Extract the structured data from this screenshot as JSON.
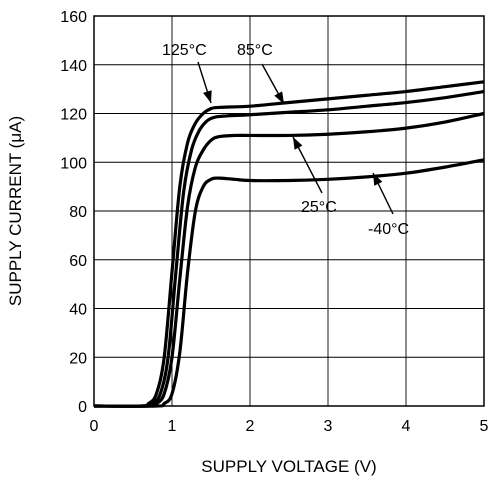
{
  "chart_data": {
    "type": "line",
    "title": "",
    "xlabel": "SUPPLY VOLTAGE (V)",
    "ylabel": "SUPPLY CURRENT (μA)",
    "xlim": [
      0,
      5
    ],
    "ylim": [
      0,
      160
    ],
    "xticks": [
      0,
      1,
      2,
      3,
      4,
      5
    ],
    "yticks": [
      0,
      20,
      40,
      60,
      80,
      100,
      120,
      140,
      160
    ],
    "grid": true,
    "legend": "none",
    "line_color": "#000000",
    "series": [
      {
        "name": "125°C",
        "x": [
          0,
          0.6,
          0.7,
          0.8,
          0.9,
          1.0,
          1.1,
          1.2,
          1.3,
          1.4,
          1.5,
          1.6,
          2,
          2.5,
          3,
          3.5,
          4,
          4.5,
          5
        ],
        "y": [
          0,
          0,
          1,
          5,
          20,
          55,
          90,
          108,
          116,
          120,
          122,
          122.5,
          123,
          124.5,
          126,
          127.5,
          129,
          131,
          133
        ]
      },
      {
        "name": "85°C",
        "x": [
          0,
          0.65,
          0.75,
          0.85,
          0.95,
          1.05,
          1.15,
          1.25,
          1.35,
          1.45,
          1.55,
          1.7,
          2,
          2.5,
          3,
          3.5,
          4,
          4.5,
          5
        ],
        "y": [
          0,
          0,
          1,
          5,
          20,
          55,
          88,
          105,
          113,
          117,
          118.5,
          119,
          119.5,
          120.5,
          121.5,
          123,
          124.5,
          126.5,
          129
        ]
      },
      {
        "name": "25°C",
        "x": [
          0,
          0.7,
          0.8,
          0.9,
          1.0,
          1.1,
          1.2,
          1.3,
          1.4,
          1.5,
          1.6,
          1.8,
          2,
          2.5,
          3,
          3.5,
          4,
          4.5,
          5
        ],
        "y": [
          0,
          0,
          1,
          5,
          20,
          52,
          82,
          98,
          105,
          109,
          110.5,
          111,
          111,
          111,
          111.5,
          112.5,
          114,
          116.5,
          120
        ]
      },
      {
        "name": "-40°C",
        "x": [
          0,
          0.8,
          0.9,
          1.0,
          1.1,
          1.2,
          1.3,
          1.4,
          1.5,
          1.6,
          1.8,
          2,
          2.5,
          3,
          3.5,
          4,
          4.5,
          5
        ],
        "y": [
          0,
          0,
          1,
          5,
          22,
          55,
          80,
          90,
          93,
          93.5,
          93,
          92.5,
          92.5,
          93,
          94,
          95.5,
          98,
          101
        ]
      }
    ],
    "annotations": [
      {
        "text": "125°C",
        "series": "125°C"
      },
      {
        "text": "85°C",
        "series": "85°C"
      },
      {
        "text": "25°C",
        "series": "25°C"
      },
      {
        "text": "-40°C",
        "series": "-40°C"
      }
    ]
  }
}
